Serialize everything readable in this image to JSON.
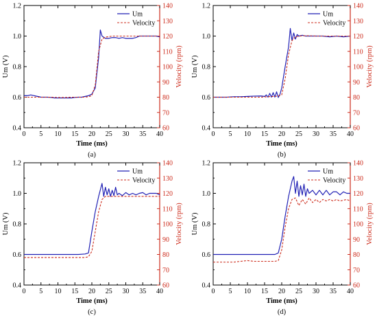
{
  "figure_colors": {
    "um": "#1f1fb4",
    "velocity": "#cc2a1a",
    "left_axis": "#000000",
    "right_axis": "#cc2a1a"
  },
  "chart_data": [
    {
      "type": "line",
      "caption": "(a)",
      "xlabel": "Time (ms)",
      "ylabel": "Um (V)",
      "y2label": "Velocity (rpm)",
      "xlim": [
        0,
        40
      ],
      "ylim": [
        0.4,
        1.2
      ],
      "y2lim": [
        60,
        140
      ],
      "xticks": [
        "0",
        "5",
        "10",
        "15",
        "20",
        "25",
        "30",
        "35",
        "40"
      ],
      "yticks": [
        "0.4",
        "0.6",
        "0.8",
        "1.0",
        "1.2"
      ],
      "y2ticks": [
        "60",
        "70",
        "80",
        "90",
        "100",
        "110",
        "120",
        "130",
        "140"
      ],
      "legend": {
        "position": "top-right",
        "entries": [
          "Um",
          "Velocity"
        ]
      },
      "grid": false,
      "series": [
        {
          "name": "Um",
          "axis": "left",
          "style": "solid",
          "x": [
            0,
            1,
            2,
            3,
            4,
            5,
            6,
            7,
            8,
            9,
            10,
            11,
            12,
            13,
            14,
            15,
            16,
            17,
            18,
            19,
            20,
            20.5,
            21,
            22,
            22.5,
            23,
            24,
            25,
            26,
            27,
            28,
            29,
            30,
            31,
            32,
            33,
            34,
            35,
            36,
            37,
            38,
            39,
            40
          ],
          "y": [
            0.61,
            0.61,
            0.615,
            0.61,
            0.605,
            0.6,
            0.6,
            0.6,
            0.598,
            0.595,
            0.595,
            0.595,
            0.595,
            0.595,
            0.595,
            0.598,
            0.6,
            0.6,
            0.605,
            0.61,
            0.62,
            0.64,
            0.66,
            0.86,
            1.04,
            1.0,
            0.985,
            0.985,
            0.99,
            0.99,
            0.985,
            0.99,
            0.985,
            0.985,
            0.985,
            0.99,
            1.0,
            1.0,
            1.0,
            1.0,
            1.0,
            1.0,
            0.995
          ]
        },
        {
          "name": "Velocity",
          "axis": "right",
          "style": "dashed",
          "x": [
            0,
            2,
            4,
            6,
            8,
            10,
            12,
            14,
            16,
            18,
            19,
            20,
            21,
            22,
            23,
            24,
            26,
            28,
            30,
            32,
            34,
            36,
            38,
            40
          ],
          "y": [
            80,
            80,
            80,
            80,
            80,
            79.8,
            79.8,
            80,
            80,
            80,
            80.3,
            81,
            88,
            110,
            118,
            119.3,
            120,
            120,
            120,
            120,
            120,
            120,
            120,
            120
          ]
        }
      ]
    },
    {
      "type": "line",
      "caption": "(b)",
      "xlabel": "Time (ms)",
      "ylabel": "Um (V)",
      "y2label": "Velocity (rpm)",
      "xlim": [
        0,
        40
      ],
      "ylim": [
        0.4,
        1.2
      ],
      "y2lim": [
        60,
        140
      ],
      "xticks": [
        "0",
        "5",
        "10",
        "15",
        "20",
        "25",
        "30",
        "35",
        "40"
      ],
      "yticks": [
        "0.4",
        "0.6",
        "0.8",
        "1.0",
        "1.2"
      ],
      "y2ticks": [
        "60",
        "70",
        "80",
        "90",
        "100",
        "110",
        "120",
        "130",
        "140"
      ],
      "legend": {
        "position": "top-right",
        "entries": [
          "Um",
          "Velocity"
        ]
      },
      "grid": false,
      "series": [
        {
          "name": "Um",
          "axis": "left",
          "style": "solid",
          "x": [
            0,
            2,
            4,
            6,
            8,
            10,
            12,
            14,
            15,
            15.5,
            16,
            16.5,
            17,
            17.5,
            18,
            18.5,
            19,
            19.5,
            20,
            21,
            22,
            22.5,
            23,
            23.5,
            24,
            24.5,
            25,
            26,
            27,
            28,
            29,
            30,
            32,
            34,
            36,
            38,
            40
          ],
          "y": [
            0.6,
            0.6,
            0.6,
            0.603,
            0.603,
            0.605,
            0.607,
            0.608,
            0.605,
            0.615,
            0.6,
            0.625,
            0.6,
            0.63,
            0.6,
            0.635,
            0.598,
            0.62,
            0.66,
            0.8,
            0.93,
            1.05,
            0.97,
            1.02,
            0.98,
            1.01,
            1.0,
            1.005,
            1.0,
            1.0,
            1.0,
            1.0,
            1.0,
            0.995,
            1.0,
            0.995,
            1.0
          ]
        },
        {
          "name": "Velocity",
          "axis": "right",
          "style": "dashed",
          "x": [
            0,
            2,
            4,
            6,
            8,
            10,
            12,
            14,
            16,
            18,
            19,
            20,
            21,
            22,
            23,
            24,
            26,
            28,
            30,
            32,
            34,
            36,
            38,
            40
          ],
          "y": [
            80,
            80,
            80,
            80,
            80,
            80,
            80,
            80,
            80.3,
            80.5,
            80.8,
            81.5,
            92,
            108,
            117,
            119.6,
            120.2,
            120.2,
            120,
            120,
            120,
            120,
            120,
            120
          ]
        }
      ]
    },
    {
      "type": "line",
      "caption": "(c)",
      "xlabel": "Time (ms)",
      "ylabel": "Um (V)",
      "y2label": "Velocity (rpm)",
      "xlim": [
        0,
        40
      ],
      "ylim": [
        0.4,
        1.2
      ],
      "y2lim": [
        60,
        140
      ],
      "xticks": [
        "0",
        "5",
        "10",
        "15",
        "20",
        "25",
        "30",
        "35",
        "40"
      ],
      "yticks": [
        "0.4",
        "0.6",
        "0.8",
        "1.0",
        "1.2"
      ],
      "y2ticks": [
        "60",
        "70",
        "80",
        "90",
        "100",
        "110",
        "120",
        "130",
        "140"
      ],
      "legend": {
        "position": "top-right",
        "entries": [
          "Um",
          "Velocity"
        ]
      },
      "grid": false,
      "series": [
        {
          "name": "Um",
          "axis": "left",
          "style": "solid",
          "x": [
            0,
            2,
            4,
            6,
            8,
            10,
            12,
            14,
            16,
            18,
            19,
            20,
            21,
            22,
            23,
            23.5,
            24,
            24.5,
            25,
            25.5,
            26,
            26.5,
            27,
            27.5,
            28,
            29,
            30,
            31,
            32,
            33,
            34,
            35,
            36,
            37,
            38,
            39,
            40
          ],
          "y": [
            0.6,
            0.6,
            0.6,
            0.6,
            0.6,
            0.6,
            0.6,
            0.6,
            0.6,
            0.603,
            0.61,
            0.75,
            0.88,
            0.98,
            1.065,
            0.98,
            1.04,
            0.99,
            1.03,
            0.98,
            1.02,
            0.985,
            1.04,
            0.99,
            1.0,
            0.985,
            1.005,
            0.99,
            1.0,
            0.99,
            1.0,
            1.005,
            0.99,
            1.0,
            1.0,
            1.0,
            0.99
          ]
        },
        {
          "name": "Velocity",
          "axis": "right",
          "style": "dashed",
          "x": [
            0,
            2,
            4,
            6,
            8,
            10,
            12,
            14,
            16,
            18,
            19,
            20,
            21,
            22,
            23,
            24,
            26,
            28,
            30,
            32,
            34,
            36,
            38,
            40
          ],
          "y": [
            78,
            78,
            78,
            78,
            78,
            78,
            78,
            78,
            78,
            78,
            78.5,
            82,
            95,
            108,
            116,
            118,
            118,
            118,
            118,
            118,
            118,
            118,
            118,
            118
          ]
        }
      ]
    },
    {
      "type": "line",
      "caption": "(d)",
      "xlabel": "Time (ms)",
      "ylabel": "Um (V)",
      "y2label": "Velocity (rpm)",
      "xlim": [
        0,
        40
      ],
      "ylim": [
        0.4,
        1.2
      ],
      "y2lim": [
        60,
        140
      ],
      "xticks": [
        "0",
        "5",
        "10",
        "15",
        "20",
        "25",
        "30",
        "35",
        "40"
      ],
      "yticks": [
        "0.4",
        "0.6",
        "0.8",
        "1.0",
        "1.2"
      ],
      "y2ticks": [
        "60",
        "70",
        "80",
        "90",
        "100",
        "110",
        "120",
        "130",
        "140"
      ],
      "legend": {
        "position": "top-right",
        "entries": [
          "Um",
          "Velocity"
        ]
      },
      "grid": false,
      "series": [
        {
          "name": "Um",
          "axis": "left",
          "style": "solid",
          "x": [
            0,
            2,
            4,
            6,
            8,
            10,
            12,
            14,
            16,
            18,
            19,
            20,
            21,
            22,
            23,
            23.5,
            24,
            24.5,
            25,
            25.5,
            26,
            26.5,
            27,
            27.5,
            28,
            29,
            30,
            31,
            32,
            33,
            34,
            35,
            36,
            37,
            38,
            39,
            40
          ],
          "y": [
            0.6,
            0.6,
            0.6,
            0.6,
            0.6,
            0.6,
            0.6,
            0.6,
            0.6,
            0.6,
            0.61,
            0.7,
            0.85,
            0.98,
            1.08,
            1.11,
            1.0,
            1.08,
            0.98,
            1.05,
            0.99,
            1.06,
            0.98,
            1.03,
            1.0,
            1.02,
            0.99,
            1.02,
            0.99,
            1.02,
            0.99,
            1.01,
            1.01,
            0.99,
            1.01,
            1.0,
            1.0
          ]
        },
        {
          "name": "Velocity",
          "axis": "right",
          "style": "dashed",
          "x": [
            0,
            2,
            4,
            6,
            8,
            10,
            12,
            14,
            16,
            18,
            19,
            20,
            21,
            22,
            23,
            24,
            25,
            26,
            27,
            28,
            29,
            30,
            31,
            32,
            33,
            34,
            35,
            36,
            37,
            38,
            39,
            40
          ],
          "y": [
            75,
            75,
            75,
            75,
            75.5,
            76,
            75.5,
            75.5,
            75.5,
            75.5,
            76,
            83,
            98,
            110,
            116,
            117,
            112,
            116,
            113,
            117,
            114,
            116,
            114,
            116,
            115,
            116,
            115,
            116,
            115,
            115.5,
            116,
            115
          ]
        }
      ]
    }
  ]
}
